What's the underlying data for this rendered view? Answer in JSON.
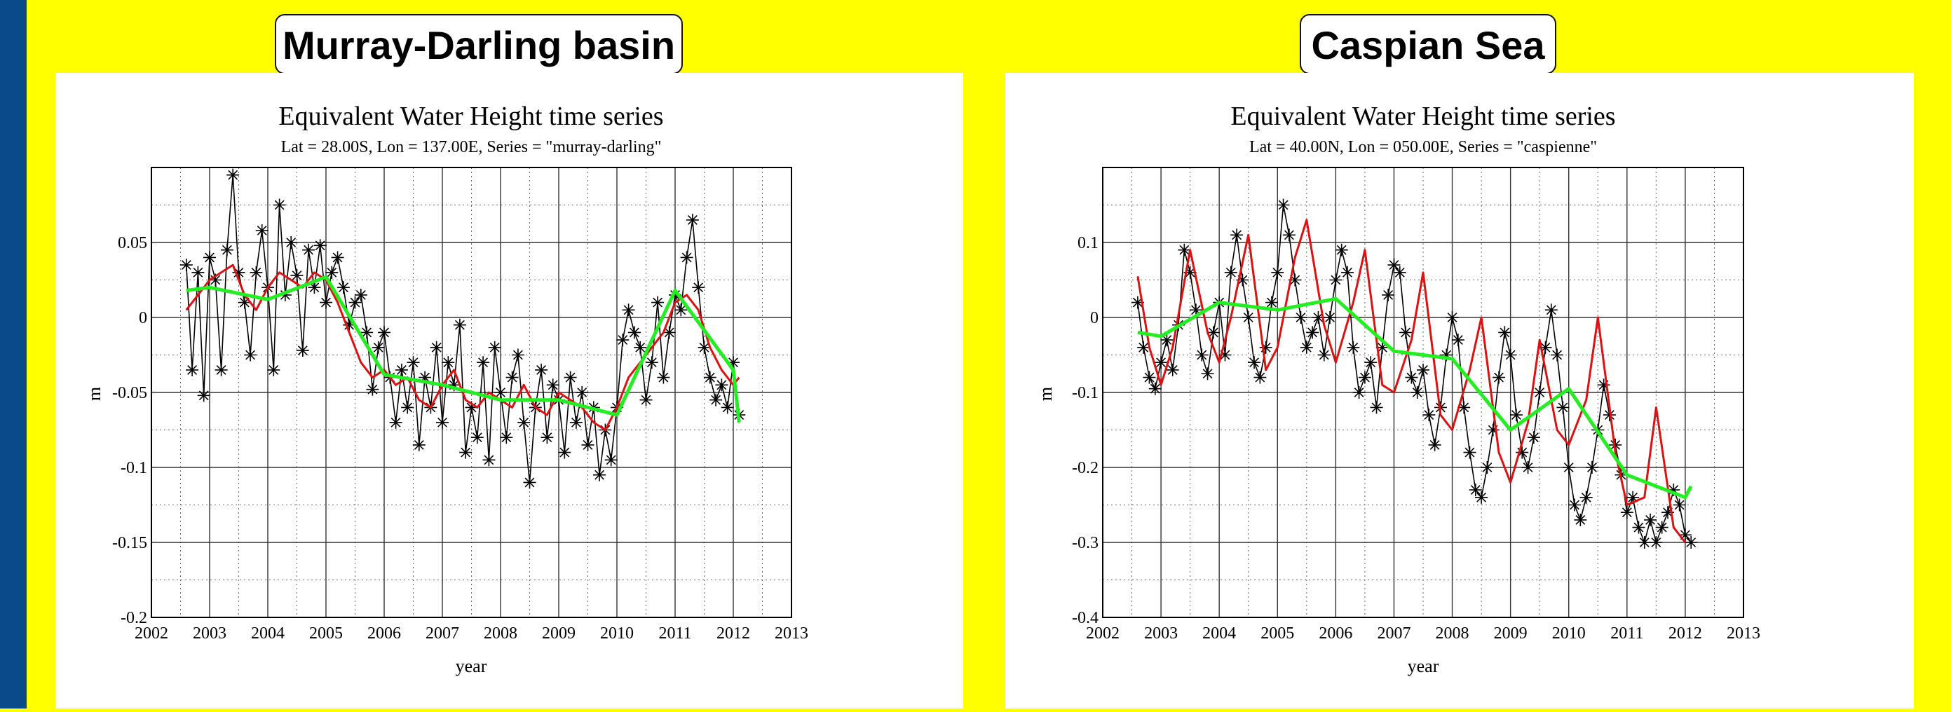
{
  "colors": {
    "background": "#ffff00",
    "sidebar": "#0b4a8a",
    "panel": "#ffffff",
    "monthly": "#000000",
    "smooth": "#dd1111",
    "annual": "#22ee22",
    "grid": "#666666"
  },
  "panels": [
    {
      "heading": "Murray-Darling basin",
      "title": "Equivalent Water Height time series",
      "subtitle": "Lat = 28.00S, Lon = 137.00E, Series = \"murray-darling\"",
      "xlabel": "year",
      "ylabel": "m"
    },
    {
      "heading": "Caspian Sea",
      "title": "Equivalent Water Height time series",
      "subtitle": "Lat = 40.00N, Lon = 050.00E, Series = \"caspienne\"",
      "xlabel": "year",
      "ylabel": "m"
    }
  ],
  "chart_data": [
    {
      "type": "line",
      "title": "Equivalent Water Height time series",
      "subtitle": "Lat = 28.00S, Lon = 137.00E, Series = \"murray-darling\"",
      "xlabel": "year",
      "ylabel": "m",
      "xlim": [
        2002,
        2013
      ],
      "ylim": [
        -0.2,
        0.1
      ],
      "xticks": [
        2002,
        2003,
        2004,
        2005,
        2006,
        2007,
        2008,
        2009,
        2010,
        2011,
        2012,
        2013
      ],
      "yticks": [
        -0.2,
        -0.15,
        -0.1,
        -0.05,
        0,
        0.05
      ],
      "ytick_labels": [
        "-0.2",
        "-0.15",
        "-0.1",
        "-0.05",
        "0",
        "0.05"
      ],
      "grid": true,
      "series": [
        {
          "marker": "asterisk",
          "color": "#000000",
          "x": [
            2002.6,
            2002.7,
            2002.8,
            2002.9,
            2003.0,
            2003.1,
            2003.2,
            2003.3,
            2003.4,
            2003.5,
            2003.6,
            2003.7,
            2003.8,
            2003.9,
            2004.0,
            2004.1,
            2004.2,
            2004.3,
            2004.4,
            2004.5,
            2004.6,
            2004.7,
            2004.8,
            2004.9,
            2005.0,
            2005.1,
            2005.2,
            2005.3,
            2005.4,
            2005.5,
            2005.6,
            2005.7,
            2005.8,
            2005.9,
            2006.0,
            2006.1,
            2006.2,
            2006.3,
            2006.4,
            2006.5,
            2006.6,
            2006.7,
            2006.8,
            2006.9,
            2007.0,
            2007.1,
            2007.2,
            2007.3,
            2007.4,
            2007.5,
            2007.6,
            2007.7,
            2007.8,
            2007.9,
            2008.0,
            2008.1,
            2008.2,
            2008.3,
            2008.4,
            2008.5,
            2008.6,
            2008.7,
            2008.8,
            2008.9,
            2009.0,
            2009.1,
            2009.2,
            2009.3,
            2009.4,
            2009.5,
            2009.6,
            2009.7,
            2009.8,
            2009.9,
            2010.0,
            2010.1,
            2010.2,
            2010.3,
            2010.4,
            2010.5,
            2010.6,
            2010.7,
            2010.8,
            2010.9,
            2011.0,
            2011.1,
            2011.2,
            2011.3,
            2011.4,
            2011.5,
            2011.6,
            2011.7,
            2011.8,
            2011.9,
            2012.0,
            2012.1
          ],
          "y": [
            0.035,
            -0.035,
            0.03,
            -0.052,
            0.04,
            0.025,
            -0.035,
            0.045,
            0.095,
            0.03,
            0.01,
            -0.025,
            0.03,
            0.058,
            0.02,
            -0.035,
            0.075,
            0.015,
            0.05,
            0.028,
            -0.022,
            0.045,
            0.02,
            0.048,
            0.01,
            0.03,
            0.04,
            0.02,
            -0.005,
            0.01,
            0.015,
            -0.01,
            -0.048,
            -0.02,
            -0.01,
            -0.04,
            -0.07,
            -0.035,
            -0.06,
            -0.03,
            -0.085,
            -0.04,
            -0.06,
            -0.02,
            -0.07,
            -0.03,
            -0.045,
            -0.005,
            -0.09,
            -0.06,
            -0.08,
            -0.03,
            -0.095,
            -0.02,
            -0.05,
            -0.08,
            -0.04,
            -0.025,
            -0.07,
            -0.11,
            -0.06,
            -0.035,
            -0.08,
            -0.045,
            -0.055,
            -0.09,
            -0.04,
            -0.07,
            -0.05,
            -0.085,
            -0.06,
            -0.105,
            -0.075,
            -0.095,
            -0.06,
            -0.015,
            0.005,
            -0.01,
            -0.02,
            -0.055,
            -0.03,
            0.01,
            -0.04,
            -0.01,
            0.015,
            0.005,
            0.04,
            0.065,
            0.02,
            -0.02,
            -0.04,
            -0.055,
            -0.045,
            -0.06,
            -0.03,
            -0.065
          ]
        },
        {
          "name": "smoothed",
          "color": "#dd1111",
          "x": [
            2002.6,
            2002.8,
            2003.0,
            2003.2,
            2003.4,
            2003.6,
            2003.8,
            2004.0,
            2004.2,
            2004.4,
            2004.6,
            2004.8,
            2005.0,
            2005.2,
            2005.4,
            2005.6,
            2005.8,
            2006.0,
            2006.2,
            2006.4,
            2006.6,
            2006.8,
            2007.0,
            2007.2,
            2007.4,
            2007.6,
            2007.8,
            2008.0,
            2008.2,
            2008.4,
            2008.6,
            2008.8,
            2009.0,
            2009.2,
            2009.4,
            2009.6,
            2009.8,
            2010.0,
            2010.2,
            2010.4,
            2010.6,
            2010.8,
            2011.0,
            2011.2,
            2011.4,
            2011.6,
            2011.8,
            2012.0,
            2012.1
          ],
          "y": [
            0.005,
            0.015,
            0.025,
            0.03,
            0.035,
            0.015,
            0.005,
            0.02,
            0.03,
            0.025,
            0.02,
            0.03,
            0.025,
            0.01,
            -0.01,
            -0.03,
            -0.04,
            -0.035,
            -0.045,
            -0.04,
            -0.055,
            -0.06,
            -0.045,
            -0.035,
            -0.055,
            -0.06,
            -0.05,
            -0.055,
            -0.06,
            -0.045,
            -0.06,
            -0.065,
            -0.05,
            -0.055,
            -0.06,
            -0.07,
            -0.075,
            -0.06,
            -0.04,
            -0.03,
            -0.02,
            -0.01,
            0.01,
            0.015,
            0.005,
            -0.02,
            -0.035,
            -0.045,
            -0.04
          ]
        },
        {
          "name": "annual",
          "color": "#22ee22",
          "x": [
            2002.6,
            2003.0,
            2004.0,
            2005.0,
            2006.0,
            2007.0,
            2008.0,
            2009.0,
            2010.0,
            2011.0,
            2012.0,
            2012.1
          ],
          "y": [
            0.018,
            0.02,
            0.012,
            0.027,
            -0.038,
            -0.045,
            -0.055,
            -0.055,
            -0.065,
            0.018,
            -0.035,
            -0.07
          ]
        }
      ]
    },
    {
      "type": "line",
      "title": "Equivalent Water Height time series",
      "subtitle": "Lat = 40.00N, Lon = 050.00E, Series = \"caspienne\"",
      "xlabel": "year",
      "ylabel": "m",
      "xlim": [
        2002,
        2013
      ],
      "ylim": [
        -0.4,
        0.2
      ],
      "xticks": [
        2002,
        2003,
        2004,
        2005,
        2006,
        2007,
        2008,
        2009,
        2010,
        2011,
        2012,
        2013
      ],
      "yticks": [
        -0.4,
        -0.3,
        -0.2,
        -0.1,
        0,
        0.1
      ],
      "ytick_labels": [
        "-0.4",
        "-0.3",
        "-0.2",
        "-0.1",
        "0",
        "0.1"
      ],
      "grid": true,
      "series": [
        {
          "marker": "asterisk",
          "color": "#000000",
          "x": [
            2002.6,
            2002.7,
            2002.8,
            2002.9,
            2003.0,
            2003.1,
            2003.2,
            2003.3,
            2003.4,
            2003.5,
            2003.6,
            2003.7,
            2003.8,
            2003.9,
            2004.0,
            2004.1,
            2004.2,
            2004.3,
            2004.4,
            2004.5,
            2004.6,
            2004.7,
            2004.8,
            2004.9,
            2005.0,
            2005.1,
            2005.2,
            2005.3,
            2005.4,
            2005.5,
            2005.6,
            2005.7,
            2005.8,
            2005.9,
            2006.0,
            2006.1,
            2006.2,
            2006.3,
            2006.4,
            2006.5,
            2006.6,
            2006.7,
            2006.8,
            2006.9,
            2007.0,
            2007.1,
            2007.2,
            2007.3,
            2007.4,
            2007.5,
            2007.6,
            2007.7,
            2007.8,
            2007.9,
            2008.0,
            2008.1,
            2008.2,
            2008.3,
            2008.4,
            2008.5,
            2008.6,
            2008.7,
            2008.8,
            2008.9,
            2009.0,
            2009.1,
            2009.2,
            2009.3,
            2009.4,
            2009.5,
            2009.6,
            2009.7,
            2009.8,
            2009.9,
            2010.0,
            2010.1,
            2010.2,
            2010.3,
            2010.4,
            2010.5,
            2010.6,
            2010.7,
            2010.8,
            2010.9,
            2011.0,
            2011.1,
            2011.2,
            2011.3,
            2011.4,
            2011.5,
            2011.6,
            2011.7,
            2011.8,
            2011.9,
            2012.0,
            2012.1
          ],
          "y": [
            0.02,
            -0.04,
            -0.08,
            -0.095,
            -0.06,
            -0.03,
            -0.07,
            -0.01,
            0.09,
            0.06,
            0.01,
            -0.05,
            -0.075,
            -0.02,
            0.02,
            -0.05,
            0.06,
            0.11,
            0.05,
            0.0,
            -0.06,
            -0.08,
            -0.04,
            0.02,
            0.06,
            0.15,
            0.11,
            0.05,
            0.0,
            -0.04,
            -0.02,
            0.0,
            -0.05,
            0.0,
            0.05,
            0.09,
            0.06,
            -0.04,
            -0.1,
            -0.08,
            -0.06,
            -0.12,
            -0.04,
            0.03,
            0.07,
            0.06,
            -0.02,
            -0.08,
            -0.1,
            -0.07,
            -0.13,
            -0.17,
            -0.12,
            -0.05,
            0.0,
            -0.03,
            -0.12,
            -0.18,
            -0.23,
            -0.24,
            -0.2,
            -0.15,
            -0.08,
            -0.02,
            -0.05,
            -0.13,
            -0.18,
            -0.2,
            -0.16,
            -0.1,
            -0.04,
            0.01,
            -0.05,
            -0.12,
            -0.2,
            -0.25,
            -0.27,
            -0.24,
            -0.2,
            -0.15,
            -0.09,
            -0.13,
            -0.17,
            -0.21,
            -0.26,
            -0.24,
            -0.28,
            -0.3,
            -0.27,
            -0.3,
            -0.28,
            -0.26,
            -0.23,
            -0.25,
            -0.29,
            -0.3
          ]
        },
        {
          "name": "smoothed",
          "color": "#dd1111",
          "x": [
            2002.6,
            2002.8,
            2003.0,
            2003.2,
            2003.5,
            2003.8,
            2004.0,
            2004.2,
            2004.5,
            2004.8,
            2005.0,
            2005.3,
            2005.5,
            2005.8,
            2006.0,
            2006.3,
            2006.5,
            2006.8,
            2007.0,
            2007.3,
            2007.5,
            2007.8,
            2008.0,
            2008.3,
            2008.5,
            2008.8,
            2009.0,
            2009.3,
            2009.5,
            2009.8,
            2010.0,
            2010.3,
            2010.5,
            2010.8,
            2011.0,
            2011.3,
            2011.5,
            2011.8,
            2012.0
          ],
          "y": [
            0.055,
            -0.04,
            -0.09,
            -0.04,
            0.09,
            -0.02,
            -0.06,
            0.0,
            0.11,
            -0.07,
            -0.04,
            0.08,
            0.13,
            -0.01,
            -0.06,
            0.02,
            0.09,
            -0.09,
            -0.1,
            -0.03,
            0.06,
            -0.13,
            -0.15,
            -0.07,
            0.0,
            -0.18,
            -0.22,
            -0.14,
            -0.03,
            -0.15,
            -0.17,
            -0.11,
            0.0,
            -0.18,
            -0.25,
            -0.24,
            -0.12,
            -0.28,
            -0.3
          ]
        },
        {
          "name": "annual",
          "color": "#22ee22",
          "x": [
            2002.6,
            2003.0,
            2004.0,
            2005.0,
            2006.0,
            2007.0,
            2008.0,
            2009.0,
            2010.0,
            2011.0,
            2012.0,
            2012.1
          ],
          "y": [
            -0.02,
            -0.025,
            0.02,
            0.01,
            0.025,
            -0.045,
            -0.055,
            -0.15,
            -0.095,
            -0.21,
            -0.24,
            -0.225
          ]
        }
      ]
    }
  ]
}
